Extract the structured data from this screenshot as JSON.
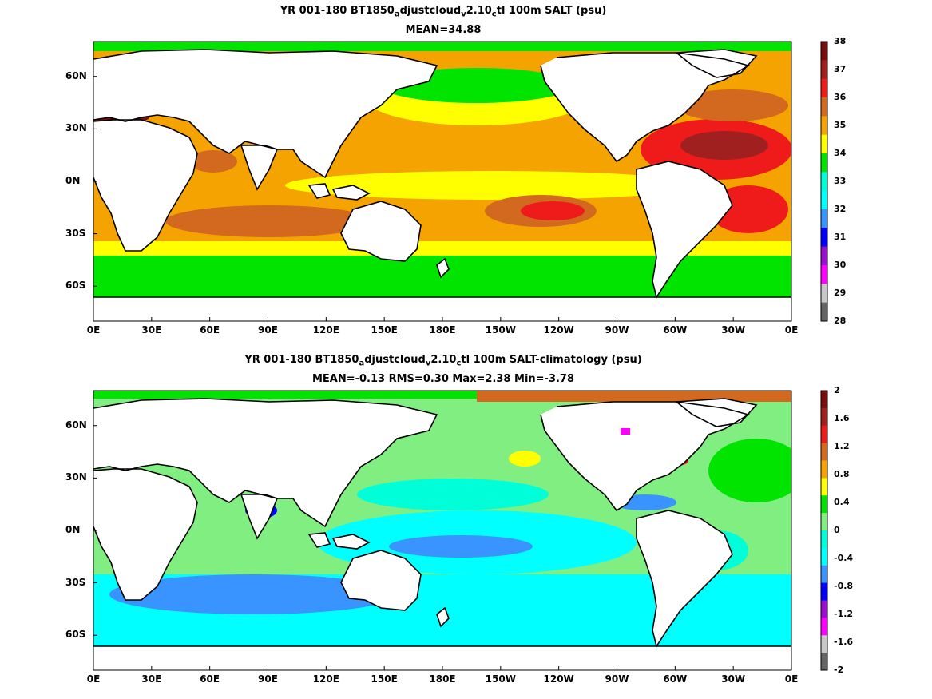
{
  "panels": [
    {
      "title_parts": [
        "YR 001-180 BT1850",
        "a",
        "djustcloud",
        "v",
        "2.10",
        "c",
        "tl 100m SALT (psu)"
      ],
      "subtitle": "MEAN=34.88",
      "colorbar": {
        "ticks": [
          "38",
          "37",
          "36",
          "35",
          "34",
          "33",
          "32",
          "31",
          "30",
          "29",
          "28"
        ],
        "colors": [
          "#7a0d0d",
          "#a02020",
          "#ef1b1b",
          "#d2691e",
          "#f5a300",
          "#ffff00",
          "#00e400",
          "#00ffd8",
          "#00ffff",
          "#3a94ff",
          "#0000ff",
          "#9a0fd0",
          "#ff00ff",
          "#c8c8c8",
          "#646464"
        ]
      }
    },
    {
      "title_parts": [
        "YR 001-180 BT1850",
        "a",
        "djustcloud",
        "v",
        "2.10",
        "c",
        "tl 100m SALT-climatology (psu)"
      ],
      "subtitle": "MEAN=-0.13   RMS=0.30   Max=2.38   Min=-3.78",
      "colorbar": {
        "ticks": [
          "2",
          "1.6",
          "1.2",
          "0.8",
          "0.4",
          "0",
          "-0.4",
          "-0.8",
          "-1.2",
          "-1.6",
          "-2"
        ],
        "colors": [
          "#7a0d0d",
          "#a02020",
          "#ef1b1b",
          "#d2691e",
          "#f5a300",
          "#ffff00",
          "#00e400",
          "#80ee80",
          "#00ffd8",
          "#00ffff",
          "#3a94ff",
          "#0000ff",
          "#9a0fd0",
          "#ff00ff",
          "#c8c8c8",
          "#646464"
        ]
      }
    }
  ],
  "x_ticks": [
    "0E",
    "30E",
    "60E",
    "90E",
    "120E",
    "150E",
    "180E",
    "150W",
    "120W",
    "90W",
    "60W",
    "30W",
    "0E"
  ],
  "y_ticks": [
    "60N",
    "30N",
    "0N",
    "30S",
    "60S"
  ],
  "map_colors": {
    "land": "#ffffff",
    "coast": "#000000",
    "top_base": "#f5a300",
    "bottom_base": "#80ee80"
  }
}
